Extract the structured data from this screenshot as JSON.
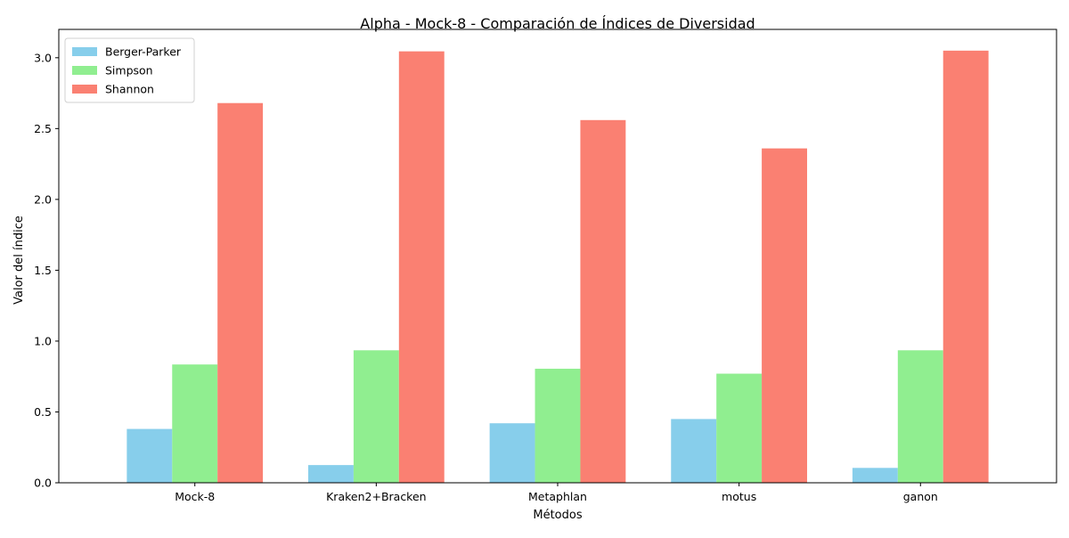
{
  "chart_data": {
    "type": "bar",
    "title": "Alpha - Mock-8 - Comparación de Índices de Diversidad",
    "xlabel": "Métodos",
    "ylabel": "Valor del índice",
    "categories": [
      "Mock-8",
      "Kraken2+Bracken",
      "Metaphlan",
      "motus",
      "ganon"
    ],
    "series": [
      {
        "name": "Berger-Parker",
        "color": "#87CEEB",
        "values": [
          0.38,
          0.125,
          0.42,
          0.45,
          0.105
        ]
      },
      {
        "name": "Simpson",
        "color": "#90EE90",
        "values": [
          0.835,
          0.935,
          0.805,
          0.77,
          0.935
        ]
      },
      {
        "name": "Shannon",
        "color": "#FA8072",
        "values": [
          2.68,
          3.045,
          2.56,
          2.36,
          3.05
        ]
      }
    ],
    "ylim": [
      0,
      3.2
    ],
    "yticks": [
      "0.0",
      "0.5",
      "1.0",
      "1.5",
      "2.0",
      "2.5",
      "3.0"
    ],
    "grid": false,
    "legend_position": "top-left"
  }
}
